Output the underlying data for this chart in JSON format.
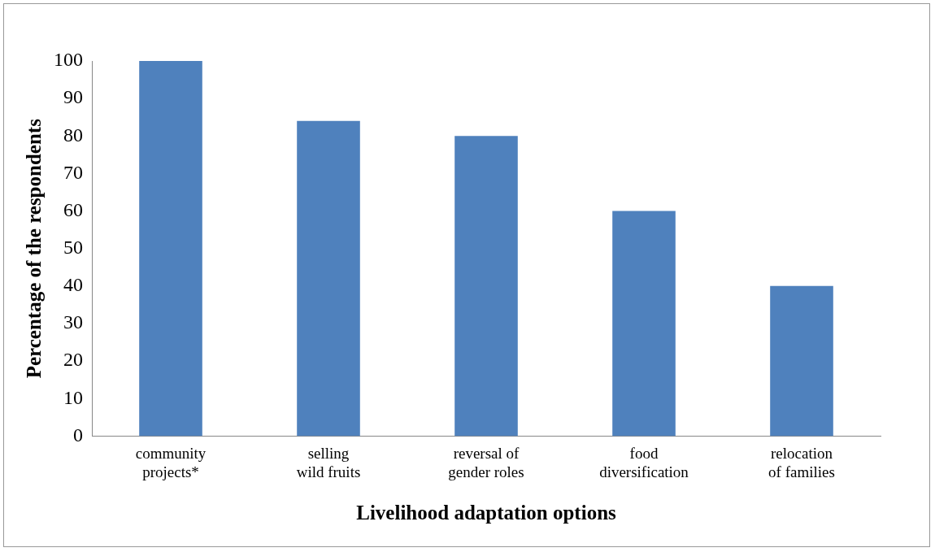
{
  "chart_data": {
    "type": "bar",
    "xlabel": "Livelihood adaptation options",
    "ylabel": "Percentage of the respondents",
    "categories": [
      "community projects*",
      "selling wild fruits",
      "reversal of gender roles",
      "food diversification",
      "relocation of families"
    ],
    "values": [
      100,
      84,
      80,
      60,
      40
    ],
    "color": "#4f81bd",
    "ylim": [
      0,
      100
    ],
    "yticks": [
      0,
      10,
      20,
      30,
      40,
      50,
      60,
      70,
      80,
      90,
      100
    ],
    "grid": false
  }
}
